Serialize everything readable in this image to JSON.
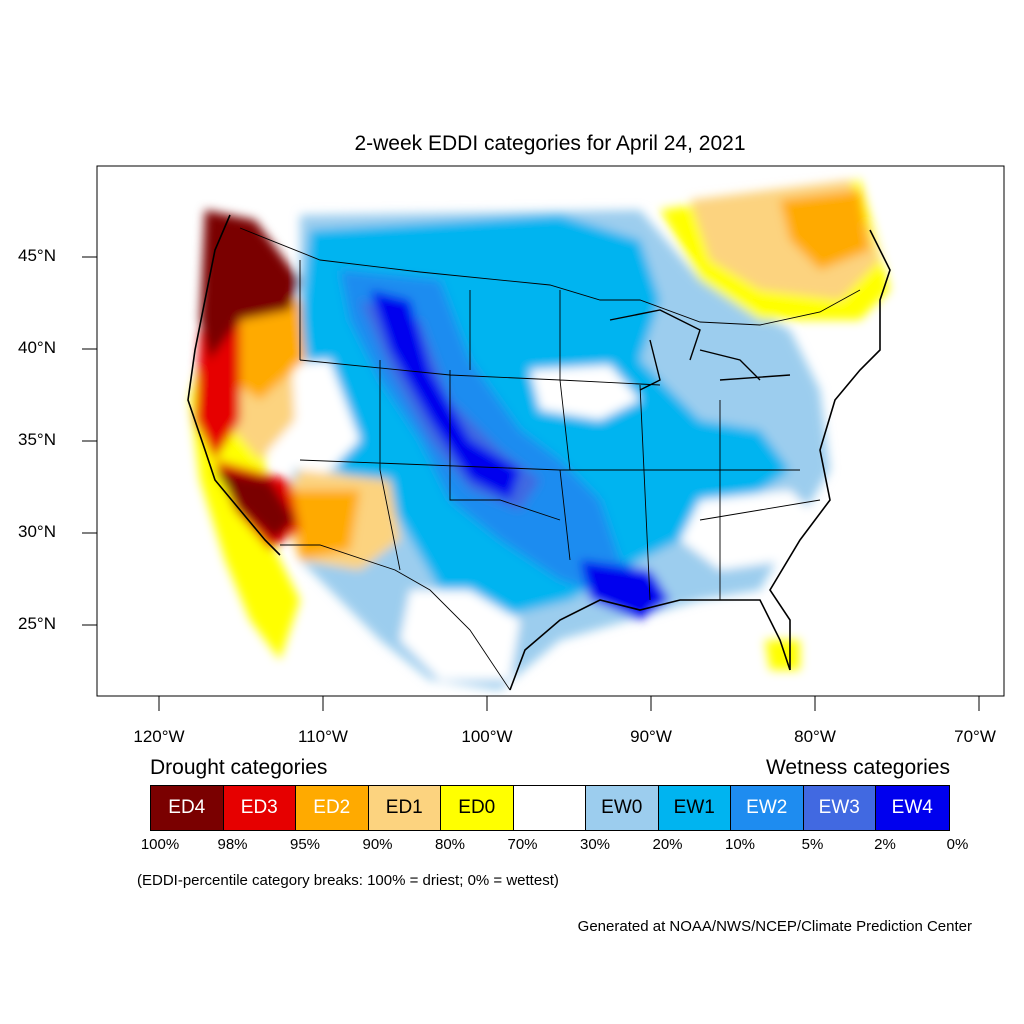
{
  "title": "2-week EDDI categories for April 24, 2021",
  "lat_labels": [
    "45°N",
    "40°N",
    "35°N",
    "30°N",
    "25°N"
  ],
  "lon_labels": [
    "120°W",
    "110°W",
    "100°W",
    "90°W",
    "80°W",
    "70°W"
  ],
  "legend": {
    "drought_heading": "Drought categories",
    "wetness_heading": "Wetness categories",
    "categories": [
      {
        "label": "ED4",
        "color": "#7a0000",
        "text_color": "#ffffff"
      },
      {
        "label": "ED3",
        "color": "#e60000",
        "text_color": "#ffffff"
      },
      {
        "label": "ED2",
        "color": "#ffaa00",
        "text_color": "#ffffff"
      },
      {
        "label": "ED1",
        "color": "#fcd37f",
        "text_color": "#000000"
      },
      {
        "label": "ED0",
        "color": "#ffff00",
        "text_color": "#000000"
      },
      {
        "label": "",
        "color": "#ffffff",
        "text_color": "#000000"
      },
      {
        "label": "EW0",
        "color": "#9ccdee",
        "text_color": "#000000"
      },
      {
        "label": "EW1",
        "color": "#00b4f0",
        "text_color": "#000000"
      },
      {
        "label": "EW2",
        "color": "#1e8cf0",
        "text_color": "#ffffff"
      },
      {
        "label": "EW3",
        "color": "#4169e1",
        "text_color": "#ffffff"
      },
      {
        "label": "EW4",
        "color": "#0000ee",
        "text_color": "#ffffff"
      }
    ],
    "percentiles": [
      "100%",
      "98%",
      "95%",
      "90%",
      "80%",
      "70%",
      "30%",
      "20%",
      "10%",
      "5%",
      "2%",
      "0%"
    ]
  },
  "note": "(EDDI-percentile category breaks: 100% = driest; 0% = wettest)",
  "credit": "Generated at NOAA/NWS/NCEP/Climate Prediction Center"
}
